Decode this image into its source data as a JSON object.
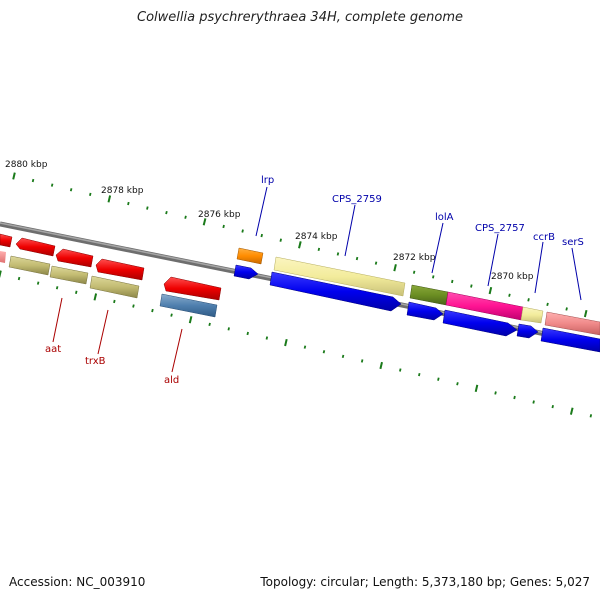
{
  "title": "Colwellia psychrerythraea 34H, complete genome",
  "footer": {
    "accession": "Accession: NC_003910",
    "summary": "Topology: circular; Length: 5,373,180 bp; Genes: 5,027"
  },
  "colors": {
    "forward_label": "#0000aa",
    "reverse_label": "#aa0000",
    "tick": "#1a7a1a",
    "backbone": "#808080"
  },
  "ticks": [
    {
      "label": "2880 kbp"
    },
    {
      "label": "2878 kbp"
    },
    {
      "label": "2876 kbp"
    },
    {
      "label": "2874 kbp"
    },
    {
      "label": "2872 kbp"
    },
    {
      "label": "2870 kbp"
    }
  ],
  "gene_labels": {
    "forward": [
      "lrp",
      "CPS_2759",
      "lolA",
      "CPS_2757",
      "ccrB",
      "serS"
    ],
    "reverse": [
      "aat",
      "trxB",
      "ald"
    ]
  }
}
